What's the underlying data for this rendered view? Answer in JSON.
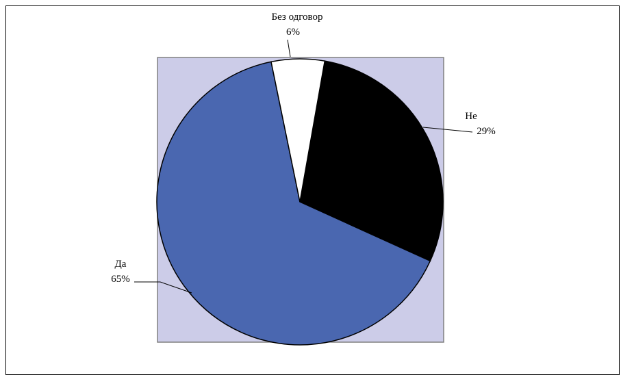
{
  "chart_data": {
    "type": "pie",
    "title": "",
    "start_angle_deg": -80,
    "direction": "clockwise",
    "slices": [
      {
        "label": "Не",
        "value": 29,
        "percent_label": "29%",
        "color": "#000000"
      },
      {
        "label": "Да",
        "value": 65,
        "percent_label": "65%",
        "color": "#4A67B0"
      },
      {
        "label": "Без одговор",
        "value": 6,
        "percent_label": "6%",
        "color": "#FFFFFF"
      }
    ],
    "plot_area_color": "#CCCCE8",
    "legend": "none"
  }
}
